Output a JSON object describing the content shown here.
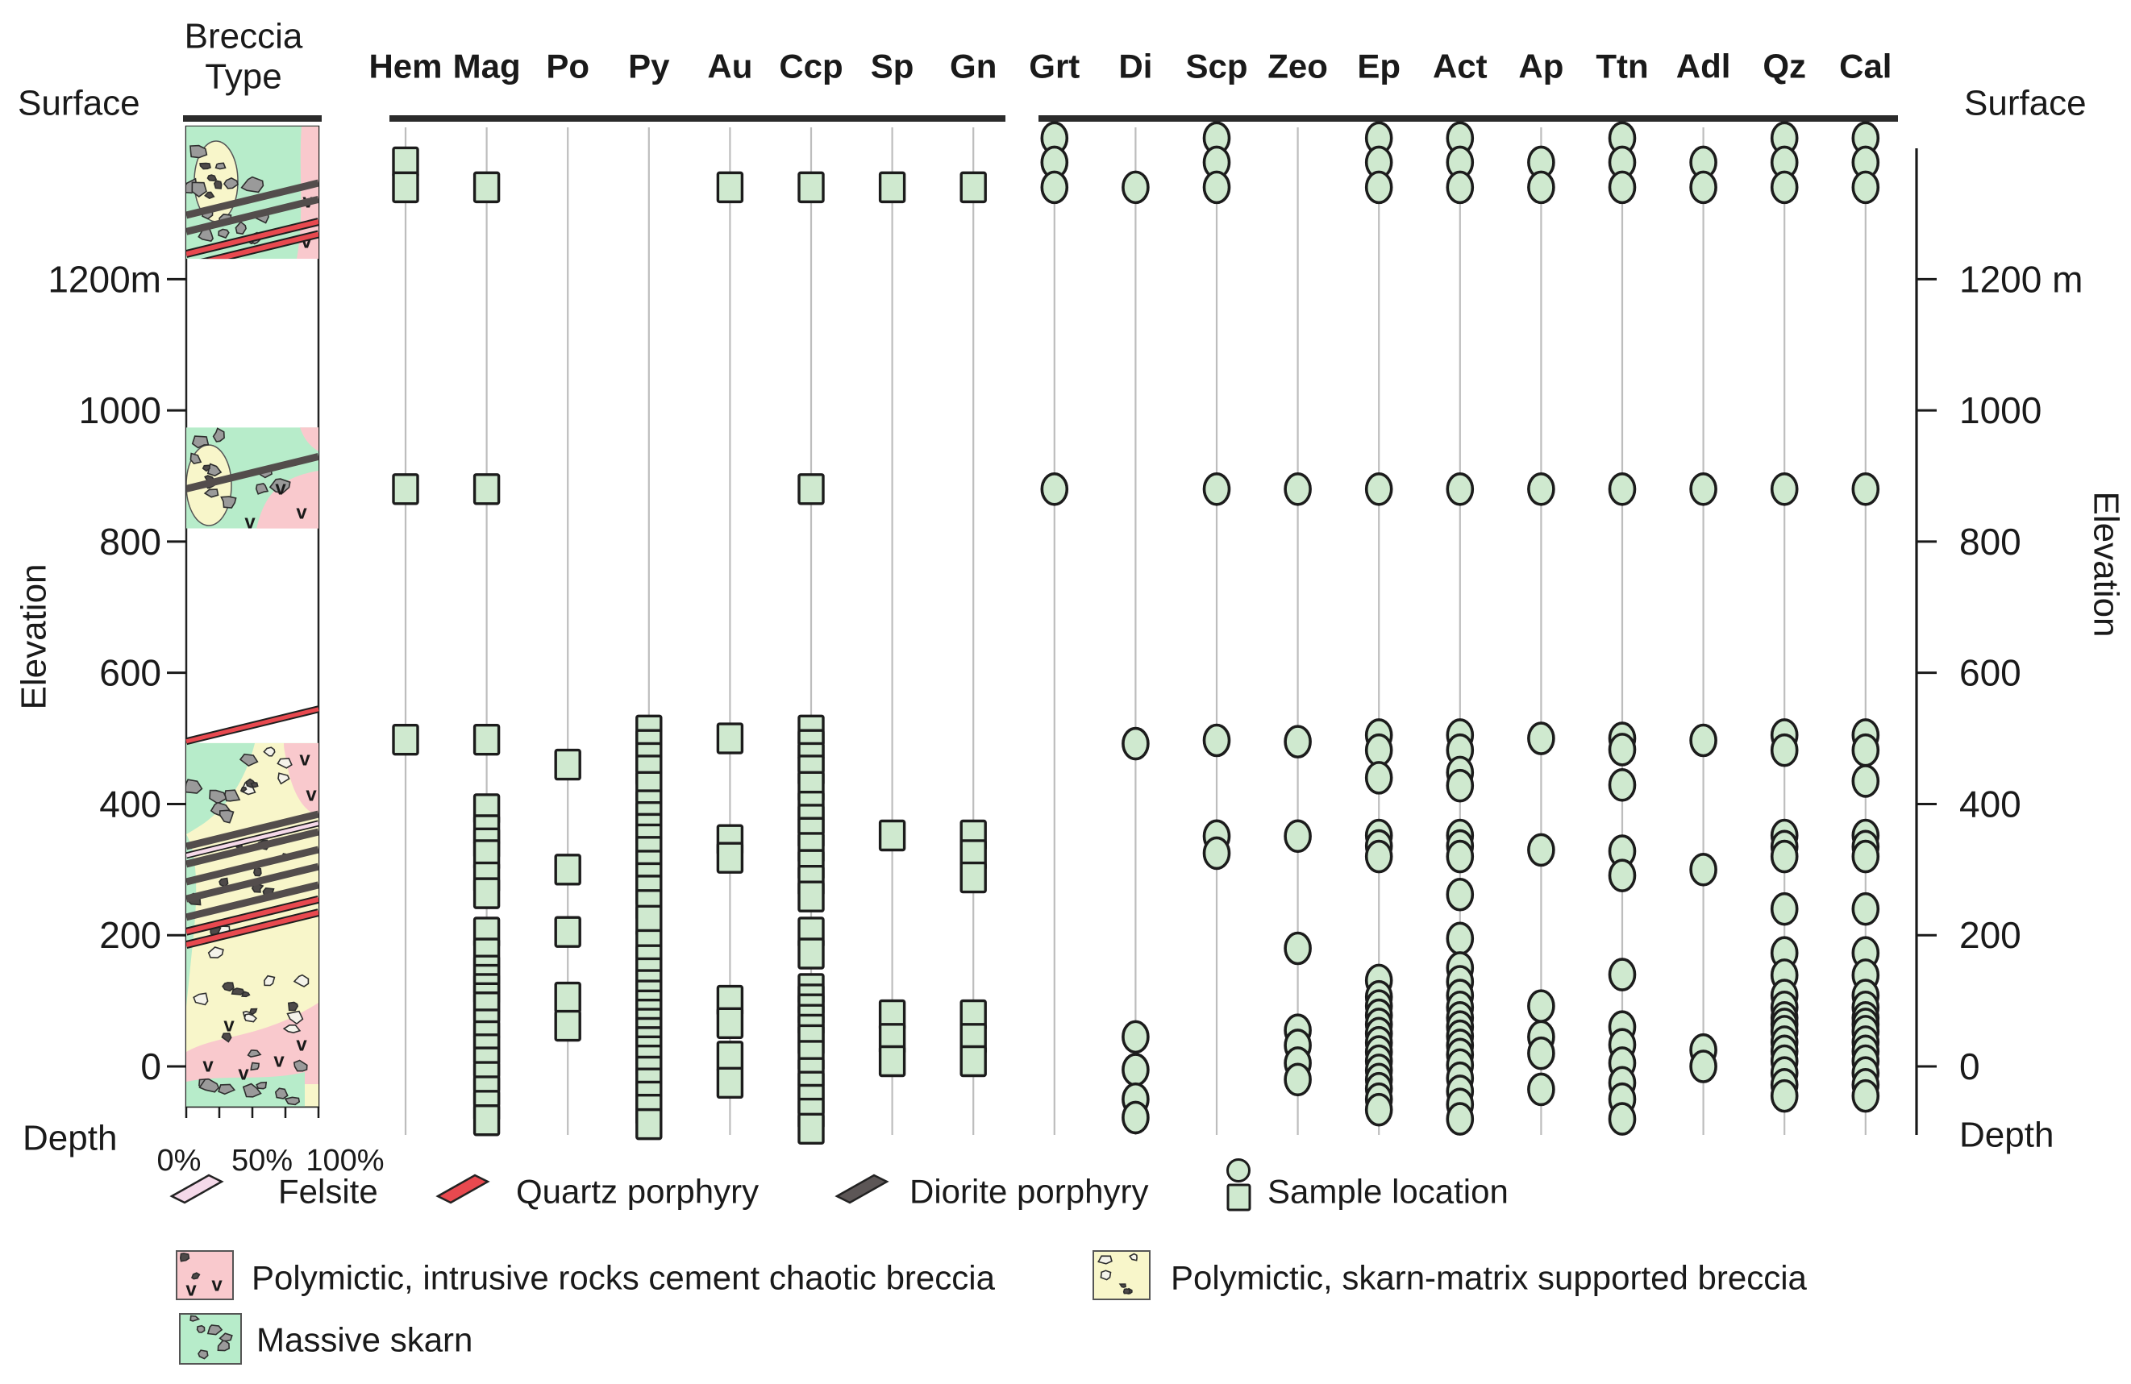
{
  "figure": {
    "breccia_header": [
      "Breccia",
      "Type"
    ],
    "left_axis": {
      "surface": "Surface",
      "depth": "Depth",
      "elevation": "Elevation",
      "ticks": [
        {
          "label": "1200m",
          "value": 1200
        },
        {
          "label": "1000",
          "value": 1000
        },
        {
          "label": "800",
          "value": 800
        },
        {
          "label": "600",
          "value": 600
        },
        {
          "label": "400",
          "value": 400
        },
        {
          "label": "200",
          "value": 200
        },
        {
          "label": "0",
          "value": 0
        }
      ]
    },
    "right_axis": {
      "surface": "Surface",
      "depth": "Depth",
      "elevation": "Elevation",
      "ticks": [
        {
          "label": "1200 m",
          "value": 1200
        },
        {
          "label": "1000",
          "value": 1000
        },
        {
          "label": "800",
          "value": 800
        },
        {
          "label": "600",
          "value": 600
        },
        {
          "label": "400",
          "value": 400
        },
        {
          "label": "200",
          "value": 200
        },
        {
          "label": "0",
          "value": 0
        }
      ]
    },
    "percent_labels": [
      "0%",
      "50%",
      "100%"
    ]
  },
  "chart_data": {
    "type": "scatter",
    "ylabel": "Elevation",
    "ylim": [
      -105,
      1441
    ],
    "surface_elevation": 1441,
    "grid": true,
    "columns": [
      {
        "label": "Hem",
        "marker": "square",
        "elevations": [
          1378,
          1340,
          880,
          498
        ]
      },
      {
        "label": "Mag",
        "marker": "square",
        "elevations": [
          1340,
          880,
          498,
          392,
          360,
          340,
          322,
          288,
          264,
          204,
          172,
          146,
          132,
          118,
          104,
          90,
          64,
          46,
          26,
          6,
          -16,
          -38,
          -60,
          -82
        ]
      },
      {
        "label": "Po",
        "marker": "square",
        "elevations": [
          460,
          300,
          205,
          105,
          62
        ]
      },
      {
        "label": "Py",
        "marker": "square",
        "elevations": [
          512,
          490,
          470,
          451,
          426,
          398,
          380,
          362,
          346,
          327,
          306,
          287,
          268,
          246,
          222,
          185,
          162,
          142,
          124,
          108,
          93,
          79,
          65,
          51,
          37,
          23,
          9,
          -8,
          -26,
          -46,
          -66,
          -88
        ]
      },
      {
        "label": "Au",
        "marker": "square",
        "elevations": [
          1340,
          500,
          345,
          318,
          100,
          66,
          15,
          -25
        ]
      },
      {
        "label": "Ccp",
        "marker": "square",
        "elevations": [
          1340,
          880,
          512,
          490,
          470,
          451,
          426,
          396,
          376,
          356,
          333,
          307,
          283,
          259,
          204,
          172,
          118,
          102,
          87,
          71,
          56,
          40,
          16,
          -10,
          -31,
          -51,
          -72,
          -95
        ]
      },
      {
        "label": "Sp",
        "marker": "square",
        "elevations": [
          1340,
          352,
          78,
          42,
          8
        ]
      },
      {
        "label": "Gn",
        "marker": "square",
        "elevations": [
          1340,
          352,
          322,
          288,
          78,
          42,
          8
        ]
      },
      {
        "label": "Grt",
        "marker": "circle",
        "elevations": [
          1415,
          1378,
          1340,
          880
        ]
      },
      {
        "label": "Di",
        "marker": "circle",
        "elevations": [
          1340,
          492,
          45,
          -5,
          -50,
          -78
        ]
      },
      {
        "label": "Scp",
        "marker": "circle",
        "elevations": [
          1415,
          1378,
          1340,
          880,
          497,
          351,
          325
        ]
      },
      {
        "label": "Zeo",
        "marker": "circle",
        "elevations": [
          880,
          495,
          351,
          180,
          55,
          32,
          5,
          -20
        ]
      },
      {
        "label": "Ep",
        "marker": "circle",
        "elevations": [
          1415,
          1378,
          1340,
          880,
          505,
          482,
          440,
          352,
          336,
          320,
          131,
          106,
          92,
          78,
          64,
          50,
          36,
          22,
          8,
          -6,
          -20,
          -34,
          -50,
          -66
        ]
      },
      {
        "label": "Act",
        "marker": "circle",
        "elevations": [
          1415,
          1378,
          1340,
          880,
          505,
          482,
          448,
          428,
          352,
          336,
          320,
          262,
          195,
          150,
          129,
          108,
          90,
          74,
          60,
          46,
          32,
          18,
          2,
          -18,
          -38,
          -58,
          -80
        ]
      },
      {
        "label": "Ap",
        "marker": "circle",
        "elevations": [
          1378,
          1340,
          880,
          500,
          330,
          92,
          45,
          20,
          -35
        ]
      },
      {
        "label": "Ttn",
        "marker": "circle",
        "elevations": [
          1415,
          1378,
          1340,
          880,
          500,
          483,
          429,
          328,
          291,
          140,
          60,
          33,
          5,
          -25,
          -50,
          -80
        ]
      },
      {
        "label": "Adl",
        "marker": "circle",
        "elevations": [
          1378,
          1340,
          880,
          497,
          300,
          25,
          0
        ]
      },
      {
        "label": "Qz",
        "marker": "circle",
        "elevations": [
          1415,
          1378,
          1340,
          880,
          505,
          482,
          352,
          335,
          320,
          240,
          173,
          139,
          108,
          90,
          74,
          64,
          53,
          37,
          23,
          8,
          -10,
          -28,
          -45
        ]
      },
      {
        "label": "Cal",
        "marker": "circle",
        "elevations": [
          1415,
          1378,
          1340,
          880,
          505,
          482,
          435,
          352,
          335,
          320,
          240,
          173,
          139,
          108,
          90,
          74,
          64,
          53,
          37,
          23,
          8,
          -10,
          -28,
          -45
        ]
      }
    ],
    "breccia_column": {
      "header": "Breccia Type",
      "percent_axis": [
        "0%",
        "50%",
        "100%"
      ],
      "blocks": [
        {
          "top_el": 1433,
          "bottom_el": 1231,
          "dark_lines": [
            1322,
            1297
          ],
          "red_lines": [
            1263,
            1244
          ],
          "felsite_lines": []
        },
        {
          "top_el": 974,
          "bottom_el": 820,
          "dark_lines": [
            905
          ],
          "red_lines": [],
          "felsite_lines": []
        },
        {
          "top_el": 493,
          "bottom_el": -61,
          "dark_lines": [
            360,
            333,
            306,
            280,
            252
          ],
          "red_lines": [
            230,
            210
          ],
          "felsite_lines": [
            346
          ],
          "gap_red_line": 520
        }
      ]
    }
  },
  "legend": {
    "row1": [
      {
        "swatch": "felsite",
        "label": "Felsite"
      },
      {
        "swatch": "quartz-porphyry",
        "label": "Quartz porphyry"
      },
      {
        "swatch": "diorite-porphyry",
        "label": "Diorite porphyry"
      },
      {
        "swatch": "sample-location",
        "label": "Sample location"
      }
    ],
    "row2": [
      {
        "swatch": "polymictic-intrusive",
        "label": "Polymictic, intrusive rocks cement chaotic breccia"
      },
      {
        "swatch": "skarn-matrix",
        "label": "Polymictic, skarn-matrix supported breccia"
      }
    ],
    "row3": [
      {
        "swatch": "massive-skarn",
        "label": "Massive skarn"
      }
    ]
  },
  "colors": {
    "sample_fill": "#cfe9cf",
    "marker_stroke": "#1c1c1c",
    "massive_skarn_green": "#b7ecca",
    "clast_gray": "#9a9a9a",
    "clast_white": "#f4f3ea",
    "clast_dark": "#4e4a49",
    "intrusive_pink": "#f9c9cd",
    "skarn_matrix_yellow": "#f8f6ca",
    "quartz_porphyry_red": "#e8494f",
    "diorite_porphyry_gray": "#534d4c",
    "felsite_pink": "#f5d9e9",
    "gridline": "#bdbdbd",
    "axis_dark": "#2b2b2b"
  }
}
